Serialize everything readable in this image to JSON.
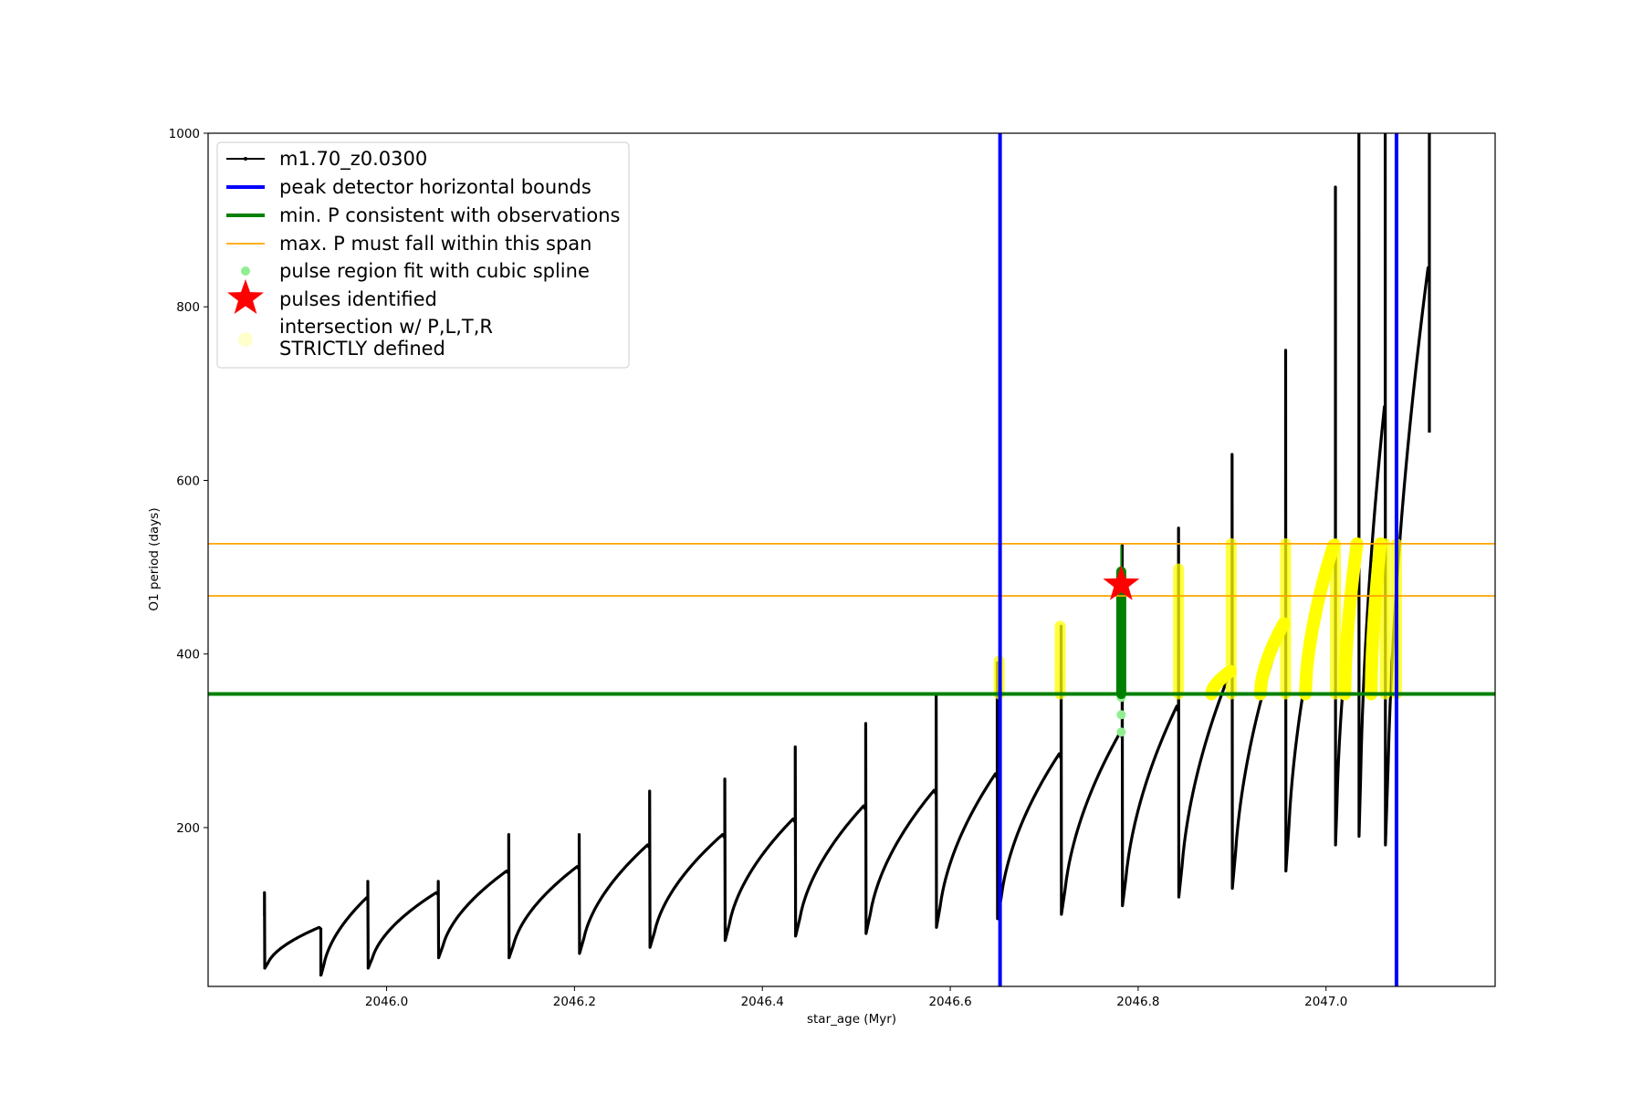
{
  "chart_data": {
    "type": "line",
    "title": "",
    "xlabel": "star_age (Myr)",
    "ylabel": "O1 period (days)",
    "xlim": [
      2045.81,
      2047.18
    ],
    "ylim": [
      17,
      1000
    ],
    "xticks": [
      {
        "value": 2046.0,
        "label": "2046.0"
      },
      {
        "value": 2046.2,
        "label": "2046.2"
      },
      {
        "value": 2046.4,
        "label": "2046.4"
      },
      {
        "value": 2046.6,
        "label": "2046.6"
      },
      {
        "value": 2046.8,
        "label": "2046.8"
      },
      {
        "value": 2047.0,
        "label": "2047.0"
      }
    ],
    "yticks": [
      {
        "value": 200,
        "label": "200"
      },
      {
        "value": 400,
        "label": "400"
      },
      {
        "value": 600,
        "label": "600"
      },
      {
        "value": 800,
        "label": "800"
      },
      {
        "value": 1000,
        "label": "1000"
      }
    ],
    "grid": false,
    "legend_position": "upper-left",
    "colors": {
      "series": "#000000",
      "bounds": "#0000ff",
      "min_p": "#008000",
      "max_p": "#ffa500",
      "spline": "#90ee90",
      "pulse": "#ff0000",
      "intersection": "#ffff00",
      "intersection_legend": "#ffffcc"
    },
    "legend": [
      {
        "key": "series",
        "label": "m1.70_z0.0300"
      },
      {
        "key": "bounds",
        "label": "peak detector horizontal bounds"
      },
      {
        "key": "min_p",
        "label": "min. P consistent with observations"
      },
      {
        "key": "max_p",
        "label": "max. P must fall within this span"
      },
      {
        "key": "spline",
        "label": "pulse region fit with cubic spline"
      },
      {
        "key": "pulse",
        "label": "pulses identified"
      },
      {
        "key": "intersection",
        "label_lines": [
          "intersection w/ P,L,T,R",
          "STRICTLY defined"
        ]
      }
    ],
    "vertical_lines": [
      2046.653,
      2047.075
    ],
    "min_p_line": 354,
    "max_p_span": [
      467,
      527
    ],
    "pulses": [
      {
        "start": 2045.87,
        "trough": 38,
        "spike": 125,
        "end_peak": 85,
        "next": 2045.93
      },
      {
        "start": 2045.93,
        "trough": 30,
        "spike": 30,
        "end_peak": 119,
        "next": 2045.98
      },
      {
        "start": 2045.98,
        "trough": 38,
        "spike": 138,
        "end_peak": 125,
        "next": 2046.055
      },
      {
        "start": 2046.055,
        "trough": 50,
        "spike": 138,
        "end_peak": 150,
        "next": 2046.13
      },
      {
        "start": 2046.13,
        "trough": 50,
        "spike": 192,
        "end_peak": 155,
        "next": 2046.205
      },
      {
        "start": 2046.205,
        "trough": 55,
        "spike": 192,
        "end_peak": 180,
        "next": 2046.28
      },
      {
        "start": 2046.28,
        "trough": 62,
        "spike": 242,
        "end_peak": 192,
        "next": 2046.36
      },
      {
        "start": 2046.36,
        "trough": 70,
        "spike": 256,
        "end_peak": 210,
        "next": 2046.435
      },
      {
        "start": 2046.435,
        "trough": 75,
        "spike": 293,
        "end_peak": 225,
        "next": 2046.51
      },
      {
        "start": 2046.51,
        "trough": 78,
        "spike": 320,
        "end_peak": 243,
        "next": 2046.585
      },
      {
        "start": 2046.585,
        "trough": 85,
        "spike": 354,
        "end_peak": 262,
        "next": 2046.65
      },
      {
        "start": 2046.65,
        "trough": 95,
        "spike": 390,
        "end_peak": 285,
        "next": 2046.718
      },
      {
        "start": 2046.718,
        "trough": 100,
        "spike": 432,
        "end_peak": 310,
        "next": 2046.783
      },
      {
        "start": 2046.783,
        "trough": 110,
        "spike": 525,
        "end_peak": 340,
        "next": 2046.843
      },
      {
        "start": 2046.843,
        "trough": 120,
        "spike": 545,
        "end_peak": 380,
        "next": 2046.9
      },
      {
        "start": 2046.9,
        "trough": 130,
        "spike": 630,
        "end_peak": 435,
        "next": 2046.957
      },
      {
        "start": 2046.957,
        "trough": 150,
        "spike": 750,
        "end_peak": 525,
        "next": 2047.01
      },
      {
        "start": 2047.01,
        "trough": 180,
        "spike": 938,
        "end_peak": 530,
        "next": 2047.035
      },
      {
        "start": 2047.035,
        "trough": 190,
        "spike": 1000,
        "end_peak": 685,
        "next": 2047.063
      },
      {
        "start": 2047.063,
        "trough": 180,
        "spike": 1000,
        "end_peak": 845,
        "next": 2047.11
      }
    ],
    "final_drop": {
      "x": 2047.11,
      "to": 655,
      "spike": 1000
    },
    "spline_points": {
      "x": 2046.782,
      "y": [
        310,
        330,
        350,
        360,
        380,
        400,
        420,
        440,
        460,
        480,
        495
      ]
    },
    "pulse_markers": [
      {
        "x": 2046.782,
        "y": 480
      }
    ],
    "green_pulse_segment": {
      "x": 2046.782,
      "y_from": 354,
      "y_to": 525
    },
    "intersection_segments": [
      {
        "x": 2046.652,
        "y_from": 354,
        "y_to": 392
      },
      {
        "x": 2046.717,
        "y_from": 354,
        "y_to": 432
      },
      {
        "x": 2046.843,
        "y_from": 354,
        "y_to": 498
      },
      {
        "x": 2046.899,
        "y_from": 354,
        "y_to": 527
      },
      {
        "x": 2046.957,
        "y_from": 354,
        "y_to": 527
      },
      {
        "x": 2047.01,
        "y_from": 354,
        "y_to": 527
      },
      {
        "x": 2047.063,
        "y_from": 354,
        "y_to": 527
      },
      {
        "x": 2047.075,
        "y_from": 354,
        "y_to": 527
      }
    ],
    "intersection_curves": [
      {
        "x_from": 2046.878,
        "x_to": 2046.898,
        "y_from": 354,
        "y_to": 380
      },
      {
        "x_from": 2046.93,
        "x_to": 2046.955,
        "y_from": 354,
        "y_to": 435
      },
      {
        "x_from": 2046.978,
        "x_to": 2047.008,
        "y_from": 354,
        "y_to": 525
      },
      {
        "x_from": 2047.02,
        "x_to": 2047.033,
        "y_from": 354,
        "y_to": 527
      },
      {
        "x_from": 2047.048,
        "x_to": 2047.058,
        "y_from": 354,
        "y_to": 527
      }
    ]
  }
}
